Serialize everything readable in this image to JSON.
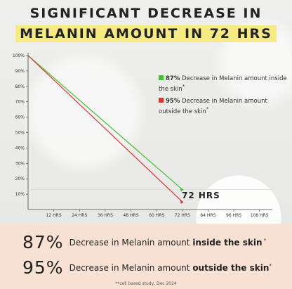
{
  "title_line1": "SIGNIFICANT DECREASE IN",
  "title_line2": "MELANIN AMOUNT IN 72 HRS",
  "colors": {
    "inside": "#3fc42f",
    "outside": "#e0342f",
    "highlight": "#f6eb83",
    "panel": "#f9e2d3"
  },
  "legend": [
    {
      "pct": "87%",
      "text": " Decrease in Melanin amount inside the skin",
      "mark": "*"
    },
    {
      "pct": "95%",
      "text": "  Decrease in Melanin amount outside the skin",
      "mark": "*"
    }
  ],
  "callout": "72 HRS",
  "chart_data": {
    "type": "line",
    "x_ticks": [
      "12 HRS",
      "24 HRS",
      "36 HRS",
      "48 HRS",
      "60 HRS",
      "72 HRS",
      "84 HRS",
      "96 HRS",
      "108 HRS"
    ],
    "y_ticks": [
      "10%",
      "20%",
      "30%",
      "40%",
      "50%",
      "60%",
      "70%",
      "80%",
      "90%",
      "100%"
    ],
    "xlim": [
      0,
      114
    ],
    "ylim": [
      0,
      100
    ],
    "grid": false,
    "legend_position": "right",
    "series": [
      {
        "name": "87% Decrease in Melanin amount inside the skin",
        "color": "#3fc42f",
        "x": [
          0,
          72
        ],
        "y": [
          100,
          13
        ]
      },
      {
        "name": "95% Decrease in Melanin amount outside the skin",
        "color": "#e0342f",
        "x": [
          0,
          72
        ],
        "y": [
          100,
          5
        ]
      }
    ]
  },
  "summary": [
    {
      "pct": "87%",
      "text": "Decrease in Melanin amount ",
      "bold": "inside the skin",
      "mark": " *"
    },
    {
      "pct": "95%",
      "text": "Decrease in Melanin amount ",
      "bold": "outside the skin",
      "mark": "*"
    }
  ],
  "footnote": "**cell based study, Dec 2024"
}
